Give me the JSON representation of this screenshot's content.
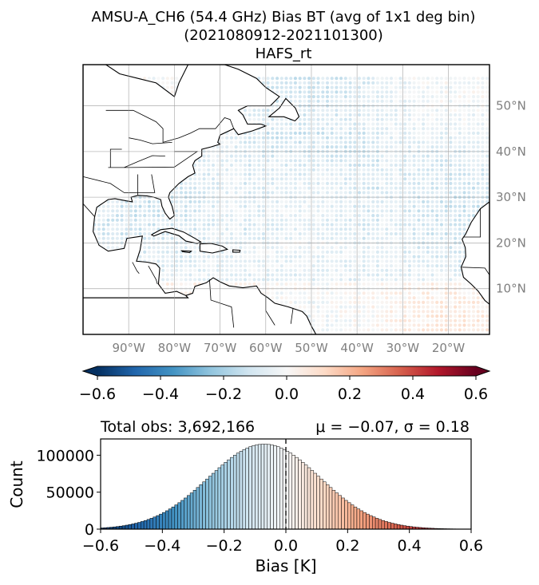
{
  "title": {
    "line1": "AMSU-A_CH6 (54.4 GHz) Bias BT (avg of 1x1 deg bin)",
    "line2": "(2021080912-2021101300)",
    "line3": "HAFS_rt"
  },
  "map": {
    "lon_range": [
      -100,
      -11
    ],
    "lat_range": [
      0,
      59
    ],
    "lon_ticks": [
      "90°W",
      "80°W",
      "70°W",
      "60°W",
      "50°W",
      "40°W",
      "30°W",
      "20°W"
    ],
    "lon_tick_values": [
      -90,
      -80,
      -70,
      -60,
      -50,
      -40,
      -30,
      -20
    ],
    "lat_ticks": [
      "10°N",
      "20°N",
      "30°N",
      "40°N",
      "50°N"
    ],
    "lat_tick_values": [
      10,
      20,
      30,
      40,
      50
    ],
    "gridlines": true,
    "colormap": "RdBu_r"
  },
  "colorbar": {
    "range": [
      -0.6,
      0.6
    ],
    "ticks": [
      "−0.6",
      "−0.4",
      "−0.2",
      "0.0",
      "0.2",
      "0.4",
      "0.6"
    ],
    "tick_values": [
      -0.6,
      -0.4,
      -0.2,
      0.0,
      0.2,
      0.4,
      0.6
    ],
    "extend": "both",
    "colors": [
      "#053061",
      "#2166ac",
      "#4393c3",
      "#92c5de",
      "#d1e5f0",
      "#f7f7f7",
      "#fddbc7",
      "#f4a582",
      "#d6604d",
      "#b2182b",
      "#67001f"
    ]
  },
  "chart_data": {
    "type": "bar",
    "total_obs_label": "Total obs: 3,692,166",
    "stats_label": "μ = −0.07, σ = 0.18",
    "mean": -0.07,
    "std": 0.18,
    "peak_count": 115000,
    "bin_range": [
      -0.6,
      0.6
    ],
    "bin_width": 0.01,
    "xlabel": "Bias [K]",
    "ylabel": "Count",
    "xlim": [
      -0.6,
      0.6
    ],
    "ylim": [
      0,
      122000
    ],
    "xticks": [
      "−0.6",
      "−0.4",
      "−0.2",
      "0.0",
      "0.2",
      "0.4",
      "0.6"
    ],
    "xtick_values": [
      -0.6,
      -0.4,
      -0.2,
      0.0,
      0.2,
      0.4,
      0.6
    ],
    "yticks": [
      "0",
      "50000",
      "100000"
    ],
    "ytick_values": [
      0,
      50000,
      100000
    ],
    "zero_line": 0.0
  }
}
